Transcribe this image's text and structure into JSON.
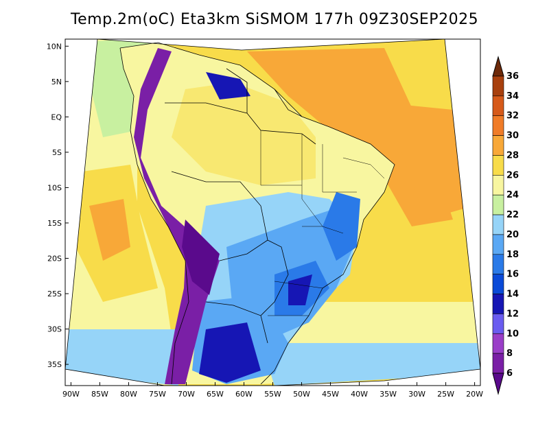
{
  "title": "Temp.2m(oC) Eta3km SiSMOM 177h 09Z30SEP2025",
  "map": {
    "lon_range": [
      -91,
      -19
    ],
    "lat_range": [
      -38,
      11
    ],
    "lat_ticks": [
      {
        "lat": 10,
        "label": "10N"
      },
      {
        "lat": 5,
        "label": "5N"
      },
      {
        "lat": 0,
        "label": "EQ"
      },
      {
        "lat": -5,
        "label": "5S"
      },
      {
        "lat": -10,
        "label": "10S"
      },
      {
        "lat": -15,
        "label": "15S"
      },
      {
        "lat": -20,
        "label": "20S"
      },
      {
        "lat": -25,
        "label": "25S"
      },
      {
        "lat": -30,
        "label": "30S"
      },
      {
        "lat": -35,
        "label": "35S"
      }
    ],
    "lon_ticks": [
      {
        "lon": -90,
        "label": "90W"
      },
      {
        "lon": -85,
        "label": "85W"
      },
      {
        "lon": -80,
        "label": "80W"
      },
      {
        "lon": -75,
        "label": "75W"
      },
      {
        "lon": -70,
        "label": "70W"
      },
      {
        "lon": -65,
        "label": "65W"
      },
      {
        "lon": -60,
        "label": "60W"
      },
      {
        "lon": -55,
        "label": "55W"
      },
      {
        "lon": -50,
        "label": "50W"
      },
      {
        "lon": -45,
        "label": "45W"
      },
      {
        "lon": -40,
        "label": "40W"
      },
      {
        "lon": -35,
        "label": "35W"
      },
      {
        "lon": -30,
        "label": "30W"
      },
      {
        "lon": -25,
        "label": "25W"
      },
      {
        "lon": -20,
        "label": "20W"
      }
    ]
  },
  "colorbar": {
    "labels": [
      "36",
      "34",
      "32",
      "30",
      "28",
      "26",
      "24",
      "22",
      "20",
      "18",
      "16",
      "14",
      "12",
      "10",
      "8",
      "6"
    ],
    "colors": {
      "lt6": "#5a0a8c",
      "6_8": "#7a1fa6",
      "8_10": "#9a3ec8",
      "10_12": "#6a5cf0",
      "12_14": "#1616b4",
      "14_16": "#0a4ad8",
      "16_18": "#2a7ae8",
      "18_20": "#5aa8f4",
      "20_22": "#96d4f8",
      "22_24": "#c8f0a0",
      "24_26": "#f8f6a0",
      "26_28": "#f8dc4a",
      "28_30": "#f8a838",
      "30_32": "#f07c28",
      "32_34": "#d65a1a",
      "34_36": "#a8400e",
      "gt36": "#6e2a0a"
    }
  }
}
